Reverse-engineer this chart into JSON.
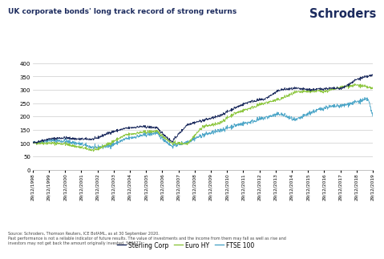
{
  "title": "UK corporate bonds' long track record of strong returns",
  "logo_text": "Schroders",
  "source_text": "Source: Schroders, Thomson Reuters, ICE BofAML, as at 30 September 2020.\nPast performance is not a reliable indicator of future results. The value of investments and the income from them may fall as well as rise and\ninvestors may not get back the amount originally invested. 506677",
  "legend_labels": [
    "Sterling Corp",
    "Euro HY",
    "FTSE 100"
  ],
  "line_colors": [
    "#1c2b5e",
    "#8dc63f",
    "#4da6c8"
  ],
  "ylim": [
    0,
    400
  ],
  "yticks": [
    0,
    50,
    100,
    150,
    200,
    250,
    300,
    350,
    400
  ],
  "background_color": "#ffffff",
  "grid_color": "#cccccc",
  "x_labels": [
    "29/12/1998",
    "29/12/1999",
    "29/12/2000",
    "29/12/2001",
    "29/12/2002",
    "29/12/2003",
    "29/12/2004",
    "29/12/2005",
    "29/12/2006",
    "29/12/2007",
    "29/12/2008",
    "29/12/2009",
    "29/12/2010",
    "29/12/2011",
    "29/12/2012",
    "29/12/2013",
    "29/12/2014",
    "29/12/2015",
    "29/12/2016",
    "29/12/2017",
    "29/12/2018",
    "29/12/2019"
  ],
  "sterling_waypoints_t": [
    0,
    1,
    2,
    3,
    4,
    5,
    6,
    7,
    8,
    9,
    10,
    11,
    12,
    13,
    14,
    15,
    16,
    17,
    18,
    19,
    20,
    21,
    22
  ],
  "sterling_waypoints_v": [
    100,
    115,
    120,
    115,
    115,
    140,
    155,
    162,
    158,
    105,
    170,
    185,
    200,
    230,
    255,
    265,
    300,
    305,
    300,
    305,
    305,
    340,
    355
  ],
  "eurohy_waypoints_t": [
    0,
    1,
    2,
    3,
    4,
    5,
    6,
    7,
    8,
    9,
    10,
    11,
    12,
    13,
    14,
    15,
    16,
    17,
    18,
    19,
    20,
    21,
    22
  ],
  "eurohy_waypoints_v": [
    100,
    100,
    98,
    85,
    72,
    100,
    130,
    140,
    145,
    100,
    98,
    162,
    172,
    210,
    230,
    250,
    265,
    290,
    295,
    295,
    310,
    318,
    305
  ],
  "ftse_waypoints_t": [
    0,
    1,
    2,
    3,
    4,
    5,
    6,
    7,
    8,
    9,
    10,
    11,
    12,
    13,
    14,
    15,
    16,
    17,
    18,
    19,
    20,
    21,
    21.7,
    22
  ],
  "ftse_waypoints_v": [
    100,
    110,
    108,
    98,
    82,
    90,
    115,
    128,
    138,
    88,
    105,
    130,
    145,
    165,
    178,
    195,
    210,
    185,
    215,
    235,
    240,
    255,
    265,
    200
  ],
  "noise_seed": 42,
  "noise_scale_sc": 2.5,
  "noise_scale_hy": 3.0,
  "noise_scale_ft": 4.0
}
